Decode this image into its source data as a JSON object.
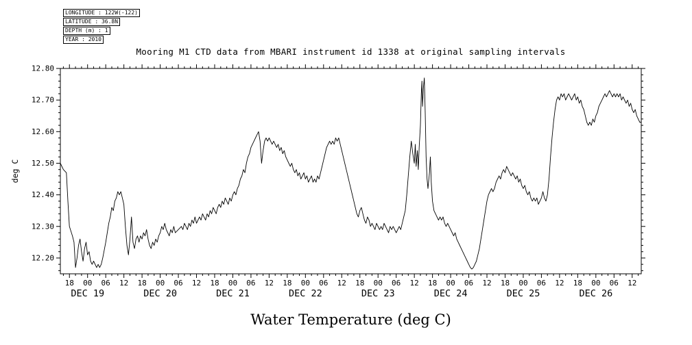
{
  "meta": {
    "longitude": "LONGITUDE : 122W(-122)",
    "latitude": "LATITUDE : 36.8N",
    "depth": "DEPTH (m) : 1",
    "year": "YEAR : 2010"
  },
  "title": "Mooring M1 CTD data from MBARI instrument id 1338 at original sampling intervals",
  "y_axis_label": "deg C",
  "caption": "Water Temperature (deg C)",
  "chart_data": {
    "type": "line",
    "title": "Mooring M1 CTD data from MBARI instrument id 1338 at original sampling intervals",
    "xlabel": "Water Temperature (deg C)",
    "ylabel": "deg C",
    "grid": false,
    "legend": "none",
    "colors": {
      "line": "#000000",
      "background": "#ffffff"
    },
    "x_unit": "hours since 2010-12-18 15:00",
    "xlim": [
      0,
      192
    ],
    "ylim": [
      12.15,
      12.8
    ],
    "y_ticks": [
      12.2,
      12.3,
      12.4,
      12.5,
      12.6,
      12.7,
      12.8
    ],
    "x_ticks": [
      [
        3,
        "18"
      ],
      [
        9,
        "00"
      ],
      [
        15,
        "06"
      ],
      [
        21,
        "12"
      ],
      [
        27,
        "18"
      ],
      [
        33,
        "00"
      ],
      [
        39,
        "06"
      ],
      [
        45,
        "12"
      ],
      [
        51,
        "18"
      ],
      [
        57,
        "00"
      ],
      [
        63,
        "06"
      ],
      [
        69,
        "12"
      ],
      [
        75,
        "18"
      ],
      [
        81,
        "00"
      ],
      [
        87,
        "06"
      ],
      [
        93,
        "12"
      ],
      [
        99,
        "18"
      ],
      [
        105,
        "00"
      ],
      [
        111,
        "06"
      ],
      [
        117,
        "12"
      ],
      [
        123,
        "18"
      ],
      [
        129,
        "00"
      ],
      [
        135,
        "06"
      ],
      [
        141,
        "12"
      ],
      [
        147,
        "18"
      ],
      [
        153,
        "00"
      ],
      [
        159,
        "06"
      ],
      [
        165,
        "12"
      ],
      [
        171,
        "18"
      ],
      [
        177,
        "00"
      ],
      [
        183,
        "06"
      ],
      [
        189,
        "12"
      ]
    ],
    "date_labels": [
      [
        9,
        "DEC 19"
      ],
      [
        33,
        "DEC 20"
      ],
      [
        57,
        "DEC 21"
      ],
      [
        81,
        "DEC 22"
      ],
      [
        105,
        "DEC 23"
      ],
      [
        129,
        "DEC 24"
      ],
      [
        153,
        "DEC 25"
      ],
      [
        177,
        "DEC 26"
      ]
    ],
    "points": [
      [
        0,
        12.5
      ],
      [
        1,
        12.48
      ],
      [
        2,
        12.47
      ],
      [
        2.5,
        12.38
      ],
      [
        3,
        12.3
      ],
      [
        4,
        12.27
      ],
      [
        4.5,
        12.25
      ],
      [
        5,
        12.17
      ],
      [
        5.5,
        12.2
      ],
      [
        6,
        12.24
      ],
      [
        6.5,
        12.26
      ],
      [
        7,
        12.22
      ],
      [
        7.5,
        12.19
      ],
      [
        8,
        12.23
      ],
      [
        8.5,
        12.25
      ],
      [
        9,
        12.21
      ],
      [
        9.5,
        12.22
      ],
      [
        10,
        12.19
      ],
      [
        10.5,
        12.18
      ],
      [
        11,
        12.19
      ],
      [
        12,
        12.17
      ],
      [
        12.5,
        12.18
      ],
      [
        13,
        12.17
      ],
      [
        13.5,
        12.18
      ],
      [
        14,
        12.2
      ],
      [
        15,
        12.25
      ],
      [
        15.5,
        12.28
      ],
      [
        16,
        12.31
      ],
      [
        16.5,
        12.33
      ],
      [
        17,
        12.36
      ],
      [
        17.5,
        12.35
      ],
      [
        18,
        12.38
      ],
      [
        18.5,
        12.39
      ],
      [
        19,
        12.41
      ],
      [
        19.5,
        12.4
      ],
      [
        20,
        12.41
      ],
      [
        20.5,
        12.39
      ],
      [
        21,
        12.37
      ],
      [
        21.5,
        12.3
      ],
      [
        22,
        12.24
      ],
      [
        22.5,
        12.21
      ],
      [
        23,
        12.26
      ],
      [
        23.5,
        12.33
      ],
      [
        24,
        12.25
      ],
      [
        24.5,
        12.23
      ],
      [
        25,
        12.26
      ],
      [
        25.5,
        12.27
      ],
      [
        26,
        12.25
      ],
      [
        26.5,
        12.27
      ],
      [
        27,
        12.26
      ],
      [
        27.5,
        12.28
      ],
      [
        28,
        12.27
      ],
      [
        28.5,
        12.29
      ],
      [
        29,
        12.26
      ],
      [
        29.5,
        12.24
      ],
      [
        30,
        12.23
      ],
      [
        30.5,
        12.25
      ],
      [
        31,
        12.24
      ],
      [
        31.5,
        12.26
      ],
      [
        32,
        12.25
      ],
      [
        32.5,
        12.27
      ],
      [
        33,
        12.28
      ],
      [
        33.5,
        12.3
      ],
      [
        34,
        12.29
      ],
      [
        34.5,
        12.31
      ],
      [
        35,
        12.29
      ],
      [
        35.5,
        12.28
      ],
      [
        36,
        12.27
      ],
      [
        36.5,
        12.29
      ],
      [
        37,
        12.28
      ],
      [
        37.5,
        12.3
      ],
      [
        38,
        12.28
      ],
      [
        39,
        12.29
      ],
      [
        40,
        12.3
      ],
      [
        40.5,
        12.29
      ],
      [
        41,
        12.31
      ],
      [
        41.5,
        12.3
      ],
      [
        42,
        12.29
      ],
      [
        42.5,
        12.31
      ],
      [
        43,
        12.3
      ],
      [
        43.5,
        12.32
      ],
      [
        44,
        12.31
      ],
      [
        44.5,
        12.33
      ],
      [
        45,
        12.31
      ],
      [
        45.5,
        12.32
      ],
      [
        46,
        12.33
      ],
      [
        46.5,
        12.32
      ],
      [
        47,
        12.34
      ],
      [
        47.5,
        12.33
      ],
      [
        48,
        12.32
      ],
      [
        48.5,
        12.34
      ],
      [
        49,
        12.33
      ],
      [
        49.5,
        12.35
      ],
      [
        50,
        12.34
      ],
      [
        50.5,
        12.36
      ],
      [
        51,
        12.35
      ],
      [
        51.5,
        12.34
      ],
      [
        52,
        12.36
      ],
      [
        52.5,
        12.37
      ],
      [
        53,
        12.36
      ],
      [
        53.5,
        12.38
      ],
      [
        54,
        12.37
      ],
      [
        54.5,
        12.39
      ],
      [
        55,
        12.38
      ],
      [
        55.5,
        12.37
      ],
      [
        56,
        12.39
      ],
      [
        56.5,
        12.38
      ],
      [
        57,
        12.4
      ],
      [
        57.5,
        12.41
      ],
      [
        58,
        12.4
      ],
      [
        58.5,
        12.42
      ],
      [
        59,
        12.43
      ],
      [
        59.5,
        12.45
      ],
      [
        60,
        12.46
      ],
      [
        60.5,
        12.48
      ],
      [
        61,
        12.47
      ],
      [
        61.5,
        12.5
      ],
      [
        62,
        12.52
      ],
      [
        62.5,
        12.53
      ],
      [
        63,
        12.55
      ],
      [
        63.5,
        12.56
      ],
      [
        64,
        12.57
      ],
      [
        64.5,
        12.58
      ],
      [
        65,
        12.59
      ],
      [
        65.5,
        12.6
      ],
      [
        66,
        12.57
      ],
      [
        66.5,
        12.5
      ],
      [
        67,
        12.54
      ],
      [
        67.5,
        12.57
      ],
      [
        68,
        12.58
      ],
      [
        68.5,
        12.57
      ],
      [
        69,
        12.58
      ],
      [
        69.5,
        12.57
      ],
      [
        70,
        12.56
      ],
      [
        70.5,
        12.57
      ],
      [
        71,
        12.56
      ],
      [
        71.5,
        12.55
      ],
      [
        72,
        12.56
      ],
      [
        72.5,
        12.54
      ],
      [
        73,
        12.55
      ],
      [
        73.5,
        12.53
      ],
      [
        74,
        12.54
      ],
      [
        74.5,
        12.52
      ],
      [
        75,
        12.51
      ],
      [
        75.5,
        12.5
      ],
      [
        76,
        12.49
      ],
      [
        76.5,
        12.5
      ],
      [
        77,
        12.48
      ],
      [
        77.5,
        12.47
      ],
      [
        78,
        12.48
      ],
      [
        78.5,
        12.46
      ],
      [
        79,
        12.47
      ],
      [
        79.5,
        12.45
      ],
      [
        80,
        12.46
      ],
      [
        80.5,
        12.47
      ],
      [
        81,
        12.45
      ],
      [
        81.5,
        12.46
      ],
      [
        82,
        12.44
      ],
      [
        82.5,
        12.45
      ],
      [
        83,
        12.46
      ],
      [
        83.5,
        12.44
      ],
      [
        84,
        12.45
      ],
      [
        84.5,
        12.44
      ],
      [
        85,
        12.46
      ],
      [
        85.5,
        12.45
      ],
      [
        86,
        12.47
      ],
      [
        86.5,
        12.49
      ],
      [
        87,
        12.51
      ],
      [
        87.5,
        12.53
      ],
      [
        88,
        12.55
      ],
      [
        88.5,
        12.56
      ],
      [
        89,
        12.57
      ],
      [
        89.5,
        12.56
      ],
      [
        90,
        12.57
      ],
      [
        90.5,
        12.56
      ],
      [
        91,
        12.58
      ],
      [
        91.5,
        12.57
      ],
      [
        92,
        12.58
      ],
      [
        92.5,
        12.56
      ],
      [
        93,
        12.54
      ],
      [
        93.5,
        12.52
      ],
      [
        94,
        12.5
      ],
      [
        94.5,
        12.48
      ],
      [
        95,
        12.46
      ],
      [
        95.5,
        12.44
      ],
      [
        96,
        12.42
      ],
      [
        96.5,
        12.4
      ],
      [
        97,
        12.38
      ],
      [
        97.5,
        12.36
      ],
      [
        98,
        12.34
      ],
      [
        98.5,
        12.33
      ],
      [
        99,
        12.35
      ],
      [
        99.5,
        12.36
      ],
      [
        100,
        12.34
      ],
      [
        100.5,
        12.32
      ],
      [
        101,
        12.31
      ],
      [
        101.5,
        12.33
      ],
      [
        102,
        12.32
      ],
      [
        102.5,
        12.3
      ],
      [
        103,
        12.31
      ],
      [
        103.5,
        12.3
      ],
      [
        104,
        12.29
      ],
      [
        104.5,
        12.31
      ],
      [
        105,
        12.3
      ],
      [
        105.5,
        12.29
      ],
      [
        106,
        12.3
      ],
      [
        106.5,
        12.29
      ],
      [
        107,
        12.31
      ],
      [
        107.5,
        12.3
      ],
      [
        108,
        12.29
      ],
      [
        108.5,
        12.28
      ],
      [
        109,
        12.3
      ],
      [
        109.5,
        12.29
      ],
      [
        110,
        12.3
      ],
      [
        110.5,
        12.29
      ],
      [
        111,
        12.28
      ],
      [
        111.5,
        12.29
      ],
      [
        112,
        12.3
      ],
      [
        112.5,
        12.29
      ],
      [
        113,
        12.31
      ],
      [
        113.5,
        12.33
      ],
      [
        114,
        12.35
      ],
      [
        114.5,
        12.4
      ],
      [
        115,
        12.46
      ],
      [
        115.5,
        12.52
      ],
      [
        116,
        12.57
      ],
      [
        116.5,
        12.53
      ],
      [
        117,
        12.5
      ],
      [
        117.3,
        12.56
      ],
      [
        117.6,
        12.49
      ],
      [
        118,
        12.54
      ],
      [
        118.3,
        12.48
      ],
      [
        118.6,
        12.55
      ],
      [
        119,
        12.62
      ],
      [
        119.3,
        12.72
      ],
      [
        119.5,
        12.76
      ],
      [
        119.7,
        12.68
      ],
      [
        120,
        12.74
      ],
      [
        120.3,
        12.77
      ],
      [
        120.6,
        12.66
      ],
      [
        120.9,
        12.52
      ],
      [
        121.2,
        12.45
      ],
      [
        121.5,
        12.42
      ],
      [
        122,
        12.47
      ],
      [
        122.3,
        12.52
      ],
      [
        122.6,
        12.44
      ],
      [
        123,
        12.38
      ],
      [
        123.5,
        12.35
      ],
      [
        124,
        12.34
      ],
      [
        124.5,
        12.33
      ],
      [
        125,
        12.32
      ],
      [
        125.5,
        12.33
      ],
      [
        126,
        12.32
      ],
      [
        126.5,
        12.33
      ],
      [
        127,
        12.31
      ],
      [
        127.5,
        12.3
      ],
      [
        128,
        12.31
      ],
      [
        128.5,
        12.3
      ],
      [
        129,
        12.29
      ],
      [
        129.5,
        12.28
      ],
      [
        130,
        12.27
      ],
      [
        130.5,
        12.28
      ],
      [
        131,
        12.26
      ],
      [
        131.5,
        12.25
      ],
      [
        132,
        12.24
      ],
      [
        132.5,
        12.23
      ],
      [
        133,
        12.22
      ],
      [
        133.5,
        12.21
      ],
      [
        134,
        12.2
      ],
      [
        134.5,
        12.19
      ],
      [
        135,
        12.18
      ],
      [
        135.5,
        12.17
      ],
      [
        136,
        12.165
      ],
      [
        136.5,
        12.17
      ],
      [
        137,
        12.18
      ],
      [
        137.5,
        12.19
      ],
      [
        138,
        12.21
      ],
      [
        138.5,
        12.23
      ],
      [
        139,
        12.26
      ],
      [
        139.5,
        12.29
      ],
      [
        140,
        12.32
      ],
      [
        140.5,
        12.35
      ],
      [
        141,
        12.38
      ],
      [
        141.5,
        12.4
      ],
      [
        142,
        12.41
      ],
      [
        142.5,
        12.42
      ],
      [
        143,
        12.41
      ],
      [
        143.5,
        12.42
      ],
      [
        144,
        12.44
      ],
      [
        144.5,
        12.45
      ],
      [
        145,
        12.46
      ],
      [
        145.5,
        12.45
      ],
      [
        146,
        12.47
      ],
      [
        146.5,
        12.48
      ],
      [
        147,
        12.47
      ],
      [
        147.5,
        12.49
      ],
      [
        148,
        12.48
      ],
      [
        148.5,
        12.47
      ],
      [
        149,
        12.46
      ],
      [
        149.5,
        12.47
      ],
      [
        150,
        12.46
      ],
      [
        150.5,
        12.45
      ],
      [
        151,
        12.46
      ],
      [
        151.5,
        12.44
      ],
      [
        152,
        12.45
      ],
      [
        152.5,
        12.43
      ],
      [
        153,
        12.42
      ],
      [
        153.5,
        12.43
      ],
      [
        154,
        12.41
      ],
      [
        154.5,
        12.4
      ],
      [
        155,
        12.41
      ],
      [
        155.5,
        12.39
      ],
      [
        156,
        12.38
      ],
      [
        156.5,
        12.39
      ],
      [
        157,
        12.38
      ],
      [
        157.5,
        12.39
      ],
      [
        158,
        12.37
      ],
      [
        158.5,
        12.38
      ],
      [
        159,
        12.39
      ],
      [
        159.5,
        12.41
      ],
      [
        160,
        12.39
      ],
      [
        160.5,
        12.38
      ],
      [
        161,
        12.4
      ],
      [
        161.5,
        12.45
      ],
      [
        162,
        12.52
      ],
      [
        162.5,
        12.58
      ],
      [
        163,
        12.63
      ],
      [
        163.5,
        12.67
      ],
      [
        164,
        12.7
      ],
      [
        164.5,
        12.71
      ],
      [
        165,
        12.7
      ],
      [
        165.5,
        12.72
      ],
      [
        166,
        12.71
      ],
      [
        166.5,
        12.72
      ],
      [
        167,
        12.7
      ],
      [
        167.5,
        12.71
      ],
      [
        168,
        12.72
      ],
      [
        168.5,
        12.71
      ],
      [
        169,
        12.7
      ],
      [
        169.5,
        12.71
      ],
      [
        170,
        12.72
      ],
      [
        170.5,
        12.7
      ],
      [
        171,
        12.71
      ],
      [
        171.5,
        12.69
      ],
      [
        172,
        12.7
      ],
      [
        172.5,
        12.68
      ],
      [
        173,
        12.67
      ],
      [
        173.5,
        12.65
      ],
      [
        174,
        12.63
      ],
      [
        174.5,
        12.62
      ],
      [
        175,
        12.63
      ],
      [
        175.5,
        12.62
      ],
      [
        176,
        12.64
      ],
      [
        176.5,
        12.63
      ],
      [
        177,
        12.65
      ],
      [
        177.5,
        12.66
      ],
      [
        178,
        12.68
      ],
      [
        178.5,
        12.69
      ],
      [
        179,
        12.7
      ],
      [
        179.5,
        12.71
      ],
      [
        180,
        12.72
      ],
      [
        180.5,
        12.71
      ],
      [
        181,
        12.72
      ],
      [
        181.5,
        12.73
      ],
      [
        182,
        12.72
      ],
      [
        182.5,
        12.71
      ],
      [
        183,
        12.72
      ],
      [
        183.5,
        12.71
      ],
      [
        184,
        12.72
      ],
      [
        184.5,
        12.71
      ],
      [
        185,
        12.72
      ],
      [
        185.5,
        12.7
      ],
      [
        186,
        12.71
      ],
      [
        186.5,
        12.7
      ],
      [
        187,
        12.69
      ],
      [
        187.5,
        12.7
      ],
      [
        188,
        12.68
      ],
      [
        188.5,
        12.69
      ],
      [
        189,
        12.67
      ],
      [
        189.5,
        12.66
      ],
      [
        190,
        12.67
      ],
      [
        190.5,
        12.65
      ],
      [
        191,
        12.64
      ],
      [
        191.5,
        12.63
      ],
      [
        192,
        12.63
      ]
    ]
  }
}
